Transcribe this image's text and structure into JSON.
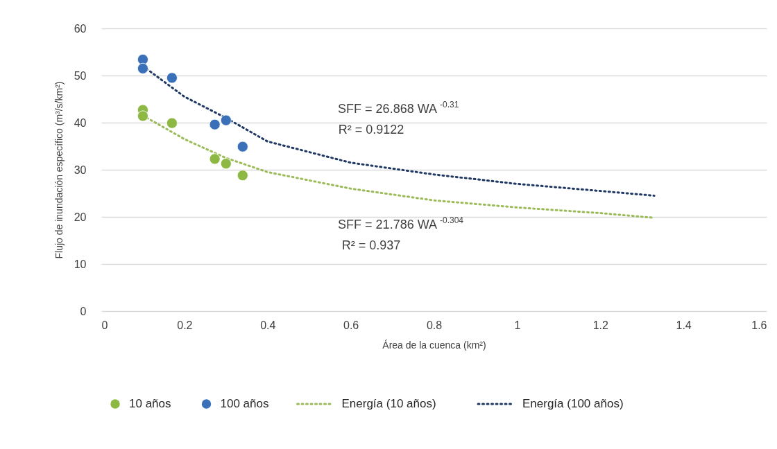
{
  "chart_data": {
    "type": "scatter",
    "xlabel": "Área de la cuenca (km²)",
    "ylabel": "Flujo de inundación específico (m³/s/km²)",
    "xlim": [
      0,
      1.6
    ],
    "xticks": [
      0,
      0.2,
      0.4,
      0.6,
      0.8,
      1,
      1.2,
      1.4,
      1.6
    ],
    "ylim": [
      0,
      60
    ],
    "yticks": [
      0,
      10,
      20,
      30,
      40,
      50,
      60
    ],
    "grid": "y",
    "legend": "bottom",
    "series": [
      {
        "name": "10 años",
        "marker": "circle",
        "color": "#8db843",
        "x": [
          0.1,
          0.1,
          0.17,
          0.273,
          0.3,
          0.34
        ],
        "values": [
          42.7,
          41.4,
          39.9,
          32.3,
          31.3,
          28.8
        ]
      },
      {
        "name": "100 años",
        "marker": "circle",
        "color": "#3a70b8",
        "x": [
          0.1,
          0.1,
          0.17,
          0.273,
          0.3,
          0.34
        ],
        "values": [
          53.4,
          51.5,
          49.5,
          39.6,
          40.5,
          34.9
        ]
      },
      {
        "name": "Energía (10 años)",
        "type": "line",
        "line_style": "dotted",
        "color": "#9bbb59",
        "x": [
          0.1,
          0.2,
          0.3,
          0.4,
          0.6,
          0.8,
          1.0,
          1.2,
          1.33
        ],
        "values": [
          41.5,
          36.5,
          32.5,
          29.5,
          26,
          23.5,
          22,
          20.8,
          19.8
        ]
      },
      {
        "name": "Energía (100 años)",
        "type": "line",
        "line_style": "dotted",
        "color": "#1f3864",
        "x": [
          0.1,
          0.2,
          0.3,
          0.4,
          0.6,
          0.8,
          1.0,
          1.2,
          1.33
        ],
        "values": [
          52,
          45.5,
          41,
          36,
          31.5,
          29,
          27,
          25.5,
          24.5
        ]
      }
    ],
    "annotations": [
      "SFF = 26.868 WA$^{-0.31}$",
      "R² = 0.9122",
      "SFF = 21.786 WA$^{-0.304}$",
      "R² = 0.937"
    ]
  }
}
